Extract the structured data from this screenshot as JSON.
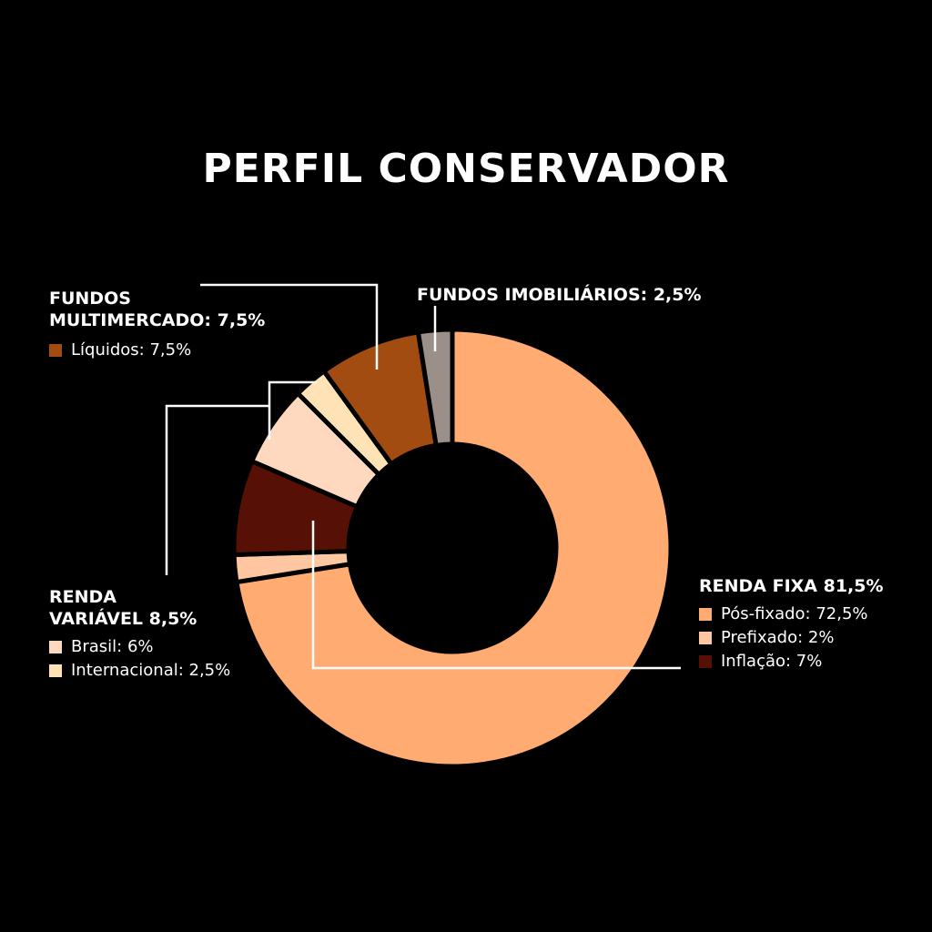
{
  "colors": {
    "background": "#000000",
    "text": "#ffffff",
    "leader_line": "#ffffff"
  },
  "chart_data": {
    "type": "pie",
    "subtype": "donut",
    "title": "PERFIL CONSERVADOR",
    "unit": "%",
    "start_angle_deg": 0,
    "direction": "clockwise",
    "slices": [
      {
        "label": "Pós-fixado",
        "value": 72.5,
        "group": "RENDA FIXA",
        "color": "#FFAB72"
      },
      {
        "label": "Prefixado",
        "value": 2,
        "group": "RENDA FIXA",
        "color": "#FFC7A1"
      },
      {
        "label": "Inflação",
        "value": 7,
        "group": "RENDA FIXA",
        "color": "#561005"
      },
      {
        "label": "Brasil",
        "value": 6,
        "group": "RENDA VARIÁVEL",
        "color": "#FFD9BF"
      },
      {
        "label": "Internacional",
        "value": 2.5,
        "group": "RENDA VARIÁVEL",
        "color": "#FFE2B5"
      },
      {
        "label": "Líquidos",
        "value": 7.5,
        "group": "FUNDOS MULTIMERCADO",
        "color": "#A24C12"
      },
      {
        "label": "Fundos Imobiliários",
        "value": 2.5,
        "group": "FUNDOS IMOBILIÁRIOS",
        "color": "#9A8F89"
      }
    ],
    "groups": {
      "multimercado": {
        "title_line1": "FUNDOS",
        "title_line2": "MULTIMERCADO: 7,5%",
        "legend": [
          {
            "text": "Líquidos: 7,5%",
            "color": "#A24C12"
          }
        ]
      },
      "imobiliarios": {
        "title_line1": "FUNDOS IMOBILIÁRIOS: 2,5%"
      },
      "variavel": {
        "title_line1": "RENDA",
        "title_line2": "VARIÁVEL 8,5%",
        "legend": [
          {
            "text": "Brasil: 6%",
            "color": "#FFD9BF"
          },
          {
            "text": "Internacional: 2,5%",
            "color": "#FFE2B5"
          }
        ]
      },
      "fixa": {
        "title_line1": "RENDA FIXA 81,5%",
        "legend": [
          {
            "text": "Pós-fixado: 72,5%",
            "color": "#FFAB72"
          },
          {
            "text": "Prefixado: 2%",
            "color": "#FFC7A1"
          },
          {
            "text": "Inflação: 7%",
            "color": "#561005"
          }
        ]
      }
    }
  }
}
